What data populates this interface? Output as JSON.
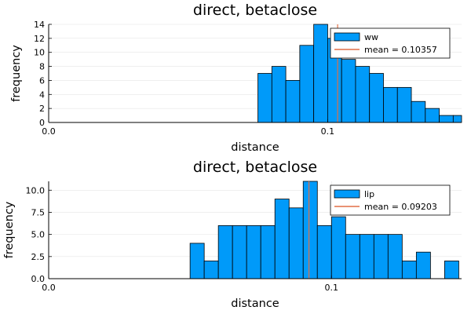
{
  "chart_data": [
    {
      "type": "bar",
      "title": "direct, betaclose",
      "xlabel": "distance",
      "ylabel": "frequency",
      "xlim": [
        0.0,
        0.148
      ],
      "ylim": [
        0,
        14
      ],
      "xticks": [
        0.0,
        0.1
      ],
      "xtick_labels": [
        "0.0",
        "0.1"
      ],
      "yticks": [
        0,
        2,
        4,
        6,
        8,
        10,
        12,
        14
      ],
      "ytick_labels": [
        "0",
        "2",
        "4",
        "6",
        "8",
        "10",
        "12",
        "14"
      ],
      "grid": true,
      "legend_position": "top-right",
      "bin_width": 0.005,
      "bins_start": [
        0.075,
        0.08,
        0.085,
        0.09,
        0.095,
        0.1,
        0.105,
        0.11,
        0.115,
        0.12,
        0.125,
        0.13,
        0.135,
        0.14,
        0.145
      ],
      "values": [
        7,
        8,
        6,
        11,
        14,
        12,
        9,
        8,
        7,
        5,
        5,
        3,
        2,
        1,
        1
      ],
      "series": [
        {
          "name": "ww",
          "color": "#009af9"
        },
        {
          "name": "mean = 0.10357",
          "color": "#e26f46",
          "x": 0.10357
        }
      ]
    },
    {
      "type": "bar",
      "title": "direct, betaclose",
      "xlabel": "distance",
      "ylabel": "frequency",
      "xlim": [
        0.0,
        0.146
      ],
      "ylim": [
        0,
        11
      ],
      "xticks": [
        0.0,
        0.1
      ],
      "xtick_labels": [
        "0.0",
        "0.1"
      ],
      "yticks": [
        0,
        2.5,
        5,
        7.5,
        10
      ],
      "ytick_labels": [
        "0.0",
        "2.5",
        "5.0",
        "7.5",
        "10.0"
      ],
      "grid": true,
      "legend_position": "top-right",
      "bin_width": 0.005,
      "bins_start": [
        0.05,
        0.055,
        0.06,
        0.065,
        0.07,
        0.075,
        0.08,
        0.085,
        0.09,
        0.095,
        0.1,
        0.105,
        0.11,
        0.115,
        0.12,
        0.125,
        0.13,
        0.135,
        0.14
      ],
      "values": [
        4,
        2,
        6,
        6,
        6,
        6,
        9,
        8,
        11,
        6,
        7,
        5,
        5,
        5,
        5,
        2,
        3,
        0,
        2
      ],
      "series": [
        {
          "name": "lip",
          "color": "#009af9"
        },
        {
          "name": "mean = 0.09203",
          "color": "#e26f46",
          "x": 0.09203
        }
      ]
    }
  ]
}
